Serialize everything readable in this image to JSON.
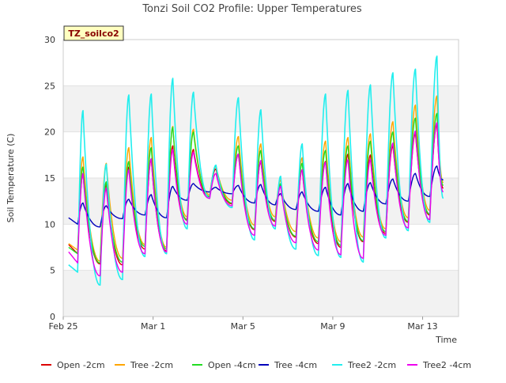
{
  "chart_data": {
    "type": "line",
    "title": "Tonzi Soil CO2 Profile: Upper Temperatures",
    "site_label": "TZ_soilco2",
    "xlabel": "Time",
    "ylabel": "Soil Temperature (C)",
    "x_unit": "days since Feb 25",
    "xlim": [
      0,
      44
    ],
    "ylim": [
      0,
      30
    ],
    "yticks": [
      0,
      5,
      10,
      15,
      20,
      25,
      30
    ],
    "xticks": [
      {
        "value": 0,
        "label": "Feb 25"
      },
      {
        "value": 10,
        "label": "Mar 1"
      },
      {
        "value": 20,
        "label": "Mar 5"
      },
      {
        "value": 30,
        "label": "Mar 9"
      },
      {
        "value": 40,
        "label": "Mar 13"
      }
    ],
    "grid": "horizontal bands",
    "legend_position": "bottom",
    "data_start": 0.6,
    "data_end": 42.3,
    "daily_peaks": [
      {
        "day": 2.2,
        "open2": 15.5,
        "tree2": 17.3,
        "open4": 16.2,
        "tree4": 12.3,
        "tree22": 22.3,
        "tree24": 15.5
      },
      {
        "day": 4.8,
        "open2": 14.3,
        "tree2": 16.6,
        "open4": 14.6,
        "tree4": 12.0,
        "tree22": 16.5,
        "tree24": 13.9
      },
      {
        "day": 7.3,
        "open2": 16.2,
        "tree2": 18.3,
        "open4": 16.8,
        "tree4": 12.7,
        "tree22": 24.0,
        "tree24": 15.9
      },
      {
        "day": 9.8,
        "open2": 17.0,
        "tree2": 19.4,
        "open4": 18.3,
        "tree4": 13.2,
        "tree22": 24.1,
        "tree24": 17.1
      },
      {
        "day": 12.2,
        "open2": 18.5,
        "tree2": 20.6,
        "open4": 20.5,
        "tree4": 14.1,
        "tree22": 25.8,
        "tree24": 18.1
      },
      {
        "day": 14.5,
        "open2": 18.1,
        "tree2": 20.3,
        "open4": 20.0,
        "tree4": 14.4,
        "tree22": 24.3,
        "tree24": 17.8
      },
      {
        "day": 17.0,
        "open2": 16.0,
        "tree2": 16.3,
        "open4": 16.3,
        "tree4": 14.0,
        "tree22": 16.4,
        "tree24": 15.5
      },
      {
        "day": 19.5,
        "open2": 17.6,
        "tree2": 19.5,
        "open4": 18.5,
        "tree4": 14.2,
        "tree22": 23.7,
        "tree24": 17.6
      },
      {
        "day": 22.0,
        "open2": 16.8,
        "tree2": 18.7,
        "open4": 18.0,
        "tree4": 14.3,
        "tree22": 22.4,
        "tree24": 16.9
      },
      {
        "day": 24.2,
        "open2": 14.3,
        "tree2": 14.8,
        "open4": 14.4,
        "tree4": 13.3,
        "tree22": 15.2,
        "tree24": 14.1
      },
      {
        "day": 26.6,
        "open2": 15.9,
        "tree2": 17.2,
        "open4": 16.6,
        "tree4": 13.5,
        "tree22": 18.7,
        "tree24": 15.9
      },
      {
        "day": 29.2,
        "open2": 16.8,
        "tree2": 19.0,
        "open4": 18.0,
        "tree4": 14.0,
        "tree22": 24.1,
        "tree24": 16.7
      },
      {
        "day": 31.7,
        "open2": 17.6,
        "tree2": 19.4,
        "open4": 18.5,
        "tree4": 14.4,
        "tree22": 24.5,
        "tree24": 17.0
      },
      {
        "day": 34.2,
        "open2": 17.5,
        "tree2": 19.8,
        "open4": 19.0,
        "tree4": 14.5,
        "tree22": 25.1,
        "tree24": 17.0
      },
      {
        "day": 36.7,
        "open2": 18.5,
        "tree2": 21.1,
        "open4": 20.0,
        "tree4": 14.9,
        "tree22": 26.4,
        "tree24": 18.8
      },
      {
        "day": 39.2,
        "open2": 19.8,
        "tree2": 22.9,
        "open4": 21.5,
        "tree4": 15.5,
        "tree22": 26.8,
        "tree24": 20.1
      },
      {
        "day": 41.6,
        "open2": 20.8,
        "tree2": 23.9,
        "open4": 22.0,
        "tree4": 16.3,
        "tree22": 28.2,
        "tree24": 21.0
      }
    ],
    "daily_minima": [
      {
        "day": 0.6,
        "open2": 7.8,
        "tree2": 7.9,
        "open4": 7.5,
        "tree4": 10.7,
        "tree22": 5.6,
        "tree24": 7.0
      },
      {
        "day": 1.6,
        "open2": 6.8,
        "tree2": 7.2,
        "open4": 6.8,
        "tree4": 10.0,
        "tree22": 4.8,
        "tree24": 5.8
      },
      {
        "day": 4.1,
        "open2": 5.7,
        "tree2": 6.0,
        "open4": 5.8,
        "tree4": 9.7,
        "tree22": 3.4,
        "tree24": 4.4
      },
      {
        "day": 6.6,
        "open2": 5.6,
        "tree2": 6.3,
        "open4": 5.9,
        "tree4": 10.6,
        "tree22": 4.0,
        "tree24": 4.8
      },
      {
        "day": 9.1,
        "open2": 7.3,
        "tree2": 7.8,
        "open4": 7.6,
        "tree4": 11.0,
        "tree22": 6.5,
        "tree24": 6.8
      },
      {
        "day": 11.5,
        "open2": 7.1,
        "tree2": 7.5,
        "open4": 7.3,
        "tree4": 10.7,
        "tree22": 6.8,
        "tree24": 7.0
      },
      {
        "day": 13.8,
        "open2": 10.5,
        "tree2": 10.8,
        "open4": 10.4,
        "tree4": 12.6,
        "tree22": 9.5,
        "tree24": 10.0
      },
      {
        "day": 16.3,
        "open2": 13.0,
        "tree2": 13.2,
        "open4": 13.0,
        "tree4": 13.5,
        "tree22": 12.8,
        "tree24": 12.8
      },
      {
        "day": 18.8,
        "open2": 12.2,
        "tree2": 12.6,
        "open4": 12.3,
        "tree4": 13.3,
        "tree22": 11.8,
        "tree24": 12.0
      },
      {
        "day": 21.3,
        "open2": 9.4,
        "tree2": 9.9,
        "open4": 9.5,
        "tree4": 12.3,
        "tree22": 8.3,
        "tree24": 8.8
      },
      {
        "day": 23.6,
        "open2": 10.3,
        "tree2": 10.8,
        "open4": 10.4,
        "tree4": 12.1,
        "tree22": 9.5,
        "tree24": 9.8
      },
      {
        "day": 25.9,
        "open2": 8.6,
        "tree2": 9.2,
        "open4": 8.7,
        "tree4": 11.6,
        "tree22": 7.3,
        "tree24": 8.0
      },
      {
        "day": 28.4,
        "open2": 7.9,
        "tree2": 8.5,
        "open4": 8.1,
        "tree4": 11.4,
        "tree22": 6.6,
        "tree24": 7.2
      },
      {
        "day": 30.9,
        "open2": 7.5,
        "tree2": 8.1,
        "open4": 7.7,
        "tree4": 11.0,
        "tree22": 6.4,
        "tree24": 6.7
      },
      {
        "day": 33.4,
        "open2": 8.1,
        "tree2": 8.6,
        "open4": 8.2,
        "tree4": 11.4,
        "tree22": 5.9,
        "tree24": 6.3
      },
      {
        "day": 35.9,
        "open2": 9.0,
        "tree2": 9.5,
        "open4": 9.2,
        "tree4": 12.2,
        "tree22": 8.5,
        "tree24": 8.8
      },
      {
        "day": 38.4,
        "open2": 10.2,
        "tree2": 10.7,
        "open4": 10.3,
        "tree4": 12.5,
        "tree22": 9.3,
        "tree24": 9.6
      },
      {
        "day": 40.8,
        "open2": 11.0,
        "tree2": 11.5,
        "open4": 11.1,
        "tree4": 13.0,
        "tree22": 10.2,
        "tree24": 10.5
      },
      {
        "day": 42.3,
        "open2": 13.9,
        "tree2": 14.5,
        "open4": 14.2,
        "tree4": 14.8,
        "tree22": 12.8,
        "tree24": 13.5
      }
    ],
    "series": [
      {
        "key": "open2",
        "name": "Open -2cm",
        "color": "#dd0000"
      },
      {
        "key": "tree2",
        "name": "Tree -2cm",
        "color": "#ffa500"
      },
      {
        "key": "open4",
        "name": "Open -4cm",
        "color": "#22dd22"
      },
      {
        "key": "tree4",
        "name": "Tree -4cm",
        "color": "#0000bb"
      },
      {
        "key": "tree22",
        "name": "Tree2 -2cm",
        "color": "#22eeee"
      },
      {
        "key": "tree24",
        "name": "Tree2 -4cm",
        "color": "#ee00ee"
      }
    ]
  }
}
